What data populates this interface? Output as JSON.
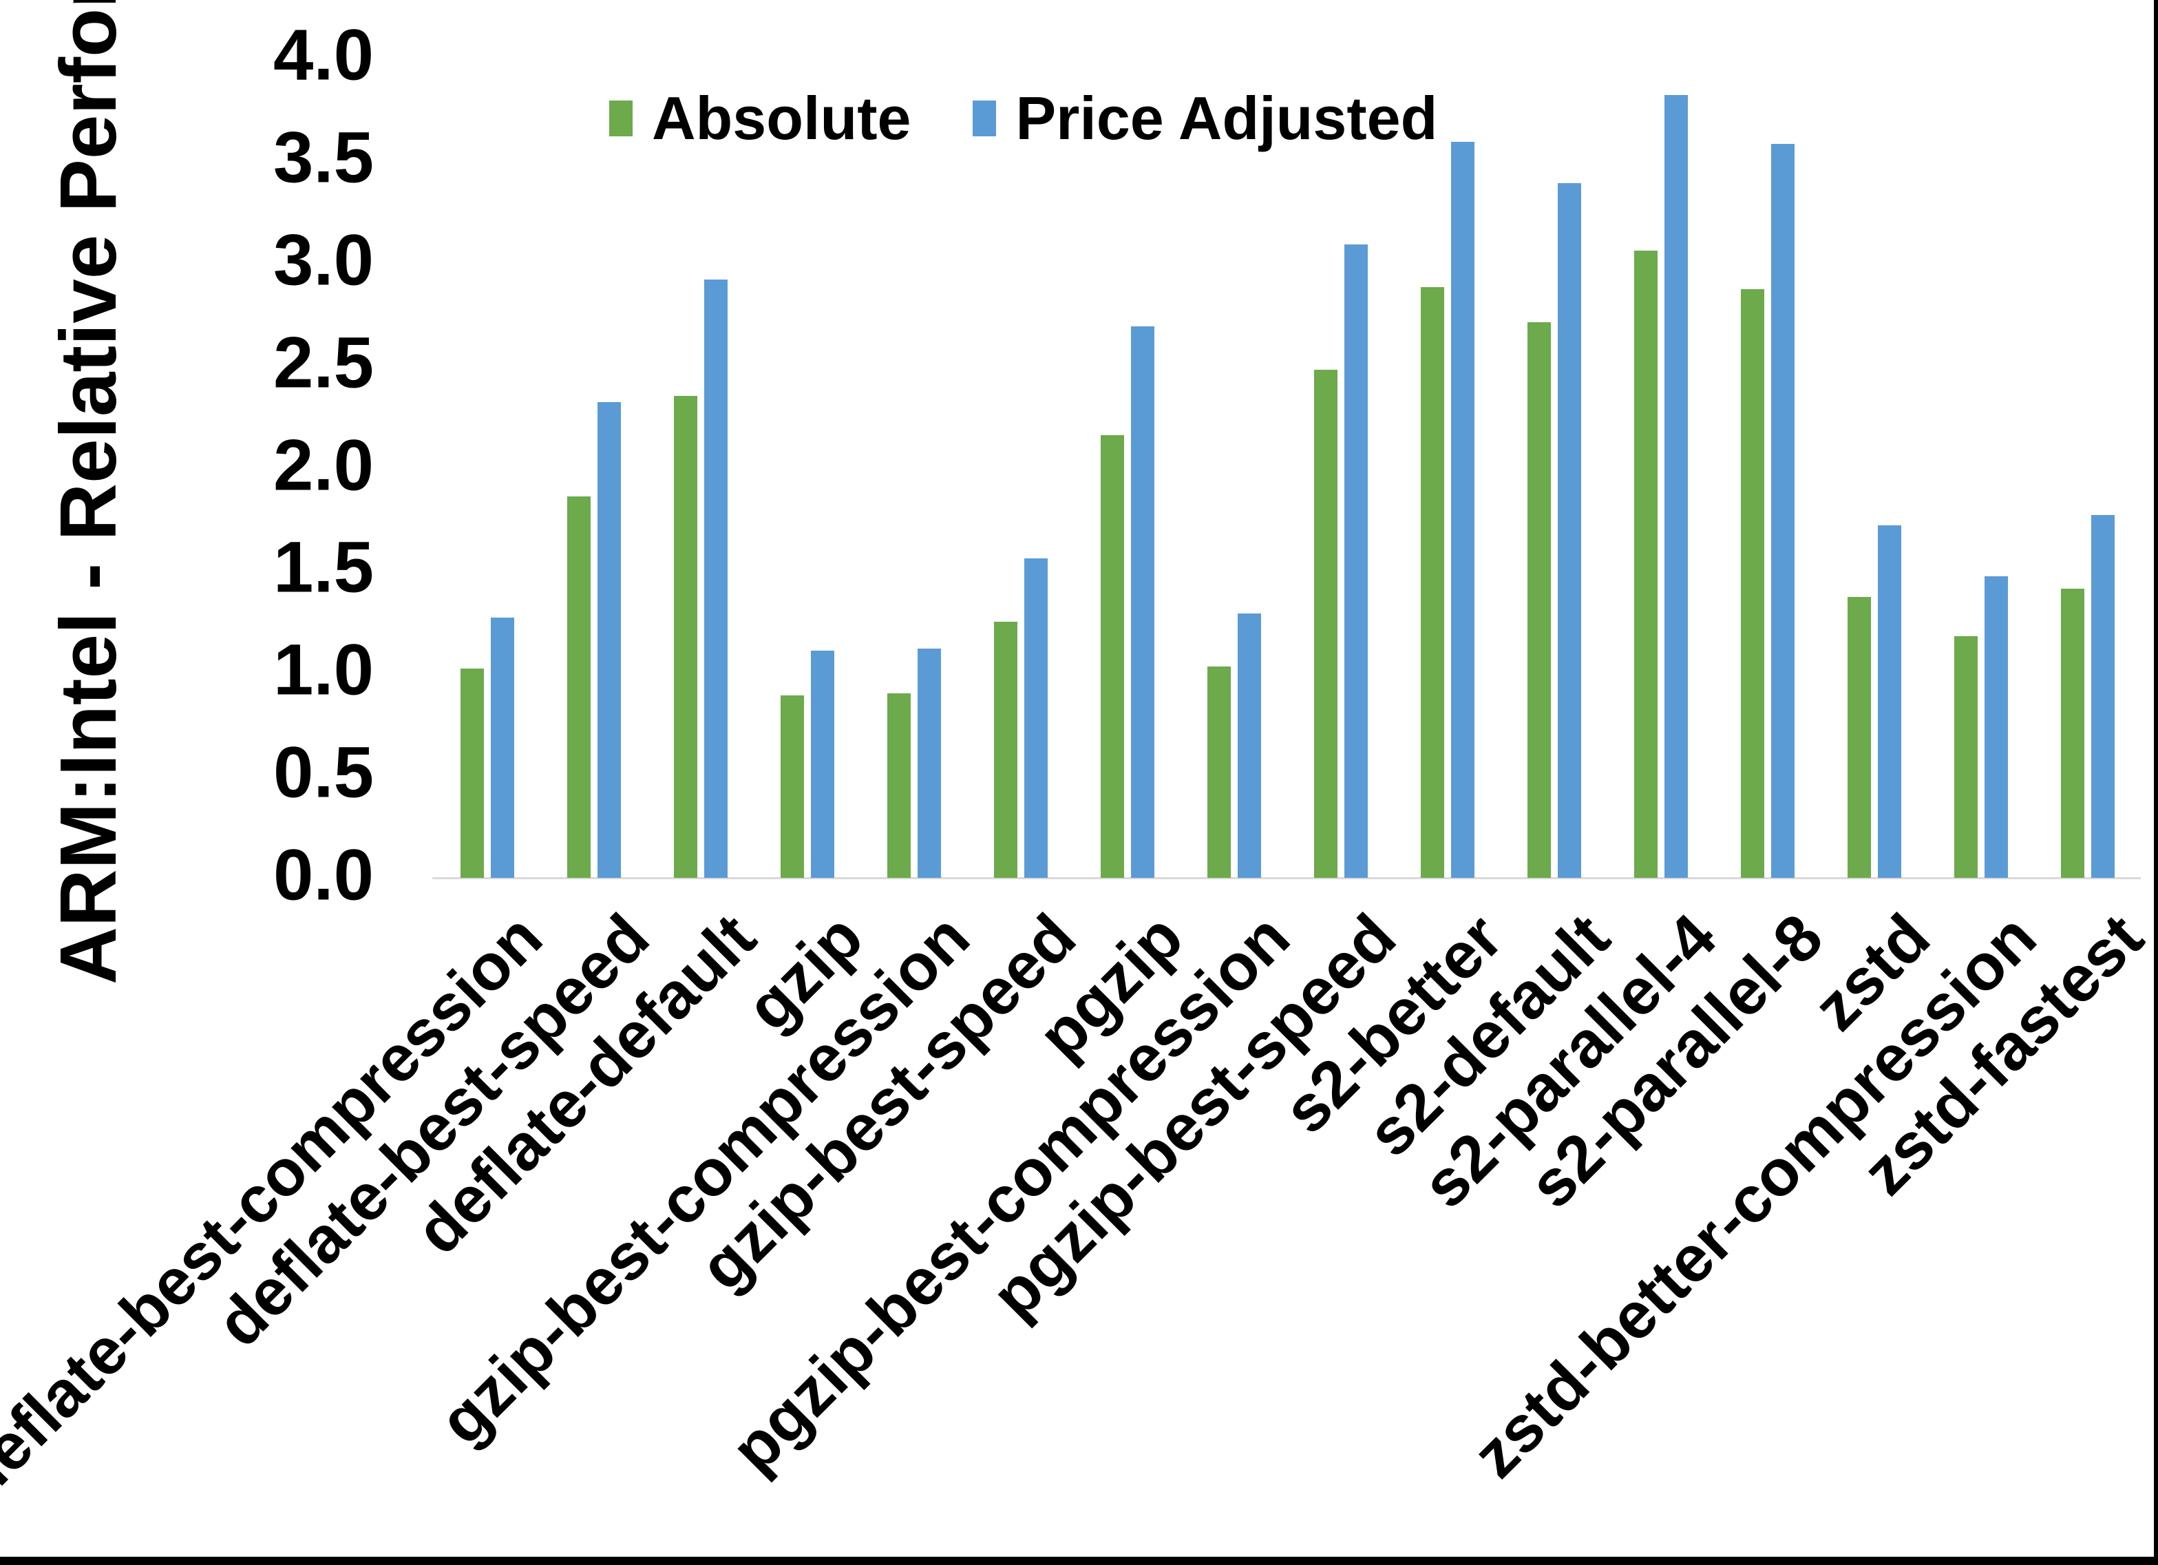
{
  "chart": {
    "y_axis_title": "ARM:Intel - Relative Performance"
  },
  "chart_data": {
    "type": "bar",
    "title": "",
    "xlabel": "",
    "ylabel": "ARM:Intel - Relative Performance",
    "ylim": [
      0.0,
      4.0
    ],
    "ytick_step": 0.5,
    "ytick_format_decimals": 1,
    "grid": false,
    "legend_position": "top-center",
    "background_color": "#ffffff",
    "baseline_color": "#d9d9d9",
    "categories": [
      "deflate-best-compression",
      "deflate-best-speed",
      "deflate-default",
      "gzip",
      "gzip-best-compression",
      "gzip-best-speed",
      "pgzip",
      "pgzip-best-compression",
      "pgzip-best-speed",
      "s2-better",
      "s2-default",
      "s2-parallel-4",
      "s2-parallel-8",
      "zstd",
      "zstd-better-compression",
      "zstd-fastest"
    ],
    "series": [
      {
        "name": "Absolute",
        "color": "#6caa4c",
        "values": [
          1.02,
          1.86,
          2.35,
          0.89,
          0.9,
          1.25,
          2.16,
          1.03,
          2.48,
          2.88,
          2.71,
          3.06,
          2.87,
          1.37,
          1.18,
          1.41
        ]
      },
      {
        "name": "Price Adjusted",
        "color": "#5b9bd5",
        "values": [
          1.27,
          2.32,
          2.92,
          1.11,
          1.12,
          1.56,
          2.69,
          1.29,
          3.09,
          3.59,
          3.39,
          3.82,
          3.58,
          1.72,
          1.47,
          1.77
        ]
      }
    ]
  }
}
